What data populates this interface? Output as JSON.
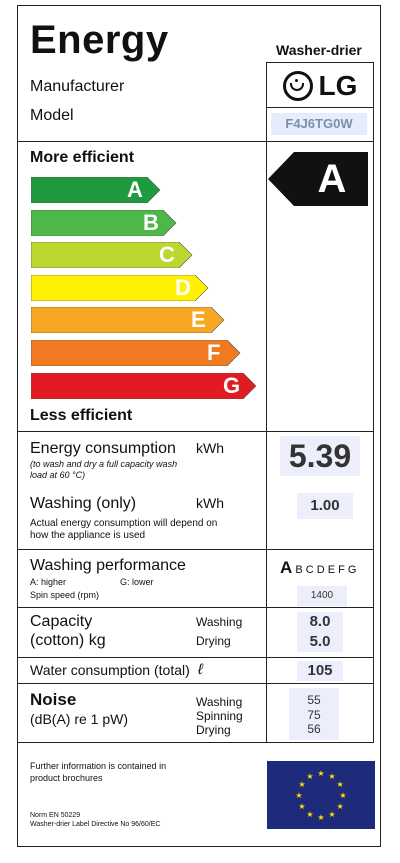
{
  "title": "Energy",
  "appliance": "Washer-drier",
  "manufacturer_label": "Manufacturer",
  "model_label": "Model",
  "brand": "LG",
  "model_code": "F4J6TG0W",
  "more_efficient": "More efficient",
  "less_efficient": "Less efficient",
  "classes": [
    {
      "letter": "A",
      "color": "#1f9a3e"
    },
    {
      "letter": "B",
      "color": "#4db848"
    },
    {
      "letter": "C",
      "color": "#bdd630"
    },
    {
      "letter": "D",
      "color": "#fff200"
    },
    {
      "letter": "E",
      "color": "#f7a823"
    },
    {
      "letter": "F",
      "color": "#ef7a22"
    },
    {
      "letter": "G",
      "color": "#e01b22"
    }
  ],
  "rating": "A",
  "energy": {
    "label": "Energy consumption",
    "unit": "kWh",
    "note": "(to wash and dry a full capacity wash load at 60 °C)",
    "value": "5.39"
  },
  "washing_only": {
    "label": "Washing (only)",
    "unit": "kWh",
    "value": "1.00",
    "note": "Actual energy consumption will depend on how the appliance is used"
  },
  "performance": {
    "label": "Washing performance",
    "scale_first": "A",
    "scale_rest": " B C D E F G",
    "higher": "A: higher",
    "lower": "G: lower",
    "spin_label": "Spin speed (rpm)",
    "spin_value": "1400"
  },
  "capacity": {
    "label_line1": "Capacity",
    "label_line2": "(cotton) kg",
    "washing_label": "Washing",
    "washing_value": "8.0",
    "drying_label": "Drying",
    "drying_value": "5.0"
  },
  "water": {
    "label": "Water consumption (total)",
    "unit": "ℓ",
    "value": "105"
  },
  "noise": {
    "label": "Noise",
    "unit": "(dB(A) re 1 pW)",
    "washing_label": "Washing",
    "washing_value": "55",
    "spinning_label": "Spinning",
    "spinning_value": "75",
    "drying_label": "Drying",
    "drying_value": "56"
  },
  "footer": {
    "info": "Further information is contained in product brochures",
    "norm": "Norm EN 50229",
    "directive": "Washer-drier Label Directive No 96/60/EC"
  }
}
